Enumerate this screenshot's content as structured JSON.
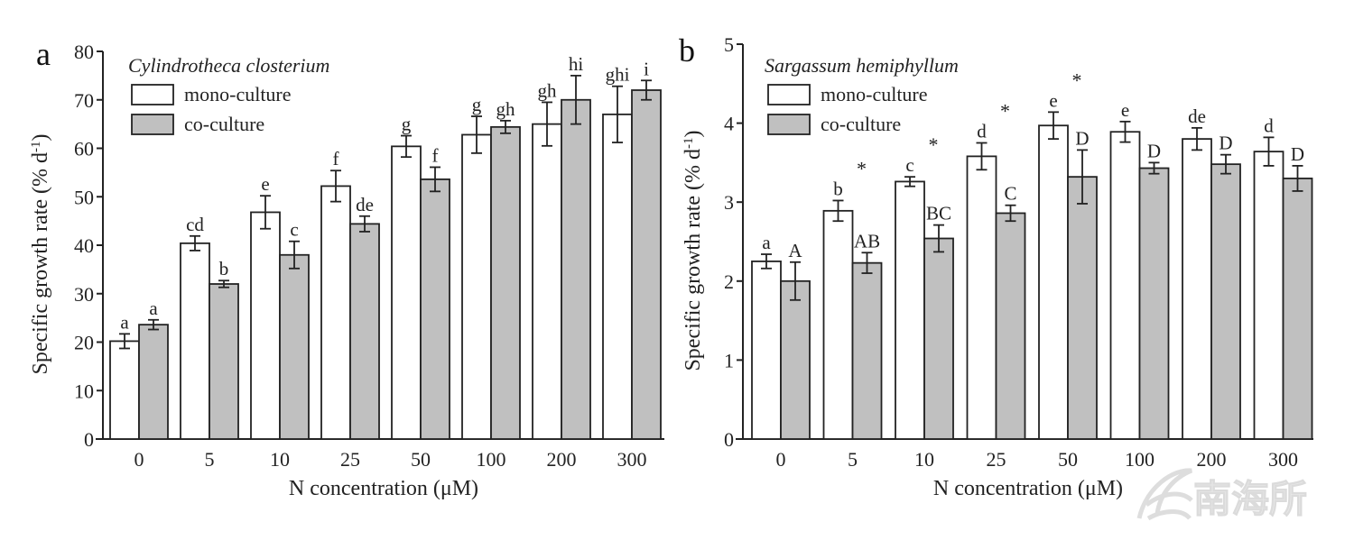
{
  "chart_data": [
    {
      "type": "bar",
      "panel": "a",
      "legend_title": "Cylindrotheca closterium",
      "legend_placement": "top-left",
      "categories": [
        "0",
        "5",
        "10",
        "25",
        "50",
        "100",
        "200",
        "300"
      ],
      "xlabel": "N concentration (μM)",
      "ylabel": "Specific growth rate (% d-1)",
      "ylim": [
        0,
        80
      ],
      "yticks": [
        0,
        10,
        20,
        30,
        40,
        50,
        60,
        70,
        80
      ],
      "grid": false,
      "series": [
        {
          "name": "mono-culture",
          "color": "#ffffff",
          "values": [
            20.2,
            40.4,
            46.8,
            52.2,
            60.4,
            62.8,
            65.0,
            67.0
          ],
          "errors": [
            1.5,
            1.5,
            3.4,
            3.2,
            2.2,
            3.8,
            4.5,
            5.8
          ],
          "labels": [
            "a",
            "cd",
            "e",
            "f",
            "g",
            "g",
            "gh",
            "ghi"
          ]
        },
        {
          "name": "co-culture",
          "color": "#c0c0c0",
          "values": [
            23.6,
            32.0,
            38.0,
            44.4,
            53.6,
            64.4,
            70.0,
            72.0
          ],
          "errors": [
            1.0,
            0.7,
            2.8,
            1.6,
            2.5,
            1.3,
            5.0,
            2.0
          ],
          "labels": [
            "a",
            "b",
            "c",
            "de",
            "f",
            "gh",
            "hi",
            "i"
          ]
        }
      ]
    },
    {
      "type": "bar",
      "panel": "b",
      "legend_title": "Sargassum hemiphyllum",
      "legend_placement": "top-left",
      "categories": [
        "0",
        "5",
        "10",
        "25",
        "50",
        "100",
        "200",
        "300"
      ],
      "xlabel": "N concentration (μM)",
      "ylabel": "Specific growth rate (% d-1)",
      "ylim": [
        0,
        5
      ],
      "yticks": [
        0,
        1,
        2,
        3,
        4,
        5
      ],
      "grid": false,
      "series": [
        {
          "name": "mono-culture",
          "color": "#ffffff",
          "values": [
            2.25,
            2.89,
            3.26,
            3.58,
            3.97,
            3.89,
            3.8,
            3.64
          ],
          "errors": [
            0.09,
            0.13,
            0.06,
            0.17,
            0.17,
            0.13,
            0.14,
            0.18
          ],
          "labels": [
            "a",
            "b",
            "c",
            "d",
            "e",
            "e",
            "de",
            "d"
          ]
        },
        {
          "name": "co-culture",
          "color": "#c0c0c0",
          "values": [
            2.0,
            2.23,
            2.54,
            2.86,
            3.32,
            3.43,
            3.48,
            3.3
          ],
          "errors": [
            0.24,
            0.13,
            0.17,
            0.1,
            0.34,
            0.07,
            0.12,
            0.16
          ],
          "labels": [
            "A",
            "AB",
            "BC",
            "C",
            "D",
            "D",
            "D",
            "D"
          ]
        }
      ],
      "significance_markers": [
        "",
        "*",
        "*",
        "*",
        "*",
        "",
        "",
        ""
      ]
    }
  ],
  "watermark": "南海所"
}
